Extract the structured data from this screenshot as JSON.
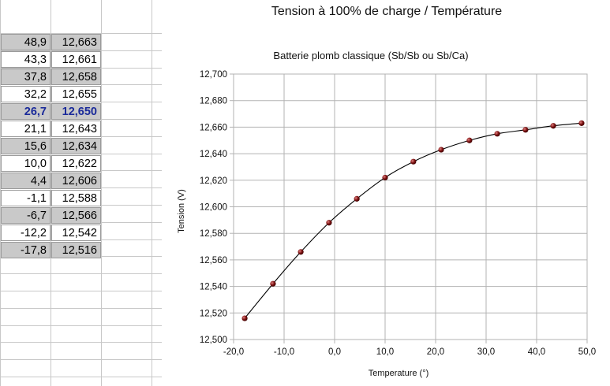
{
  "sheet": {
    "rows": [
      {
        "temp": "48,9",
        "volt": "12,663",
        "shaded": true,
        "highlight": false
      },
      {
        "temp": "43,3",
        "volt": "12,661",
        "shaded": false,
        "highlight": false
      },
      {
        "temp": "37,8",
        "volt": "12,658",
        "shaded": true,
        "highlight": false
      },
      {
        "temp": "32,2",
        "volt": "12,655",
        "shaded": false,
        "highlight": false
      },
      {
        "temp": "26,7",
        "volt": "12,650",
        "shaded": true,
        "highlight": true
      },
      {
        "temp": "21,1",
        "volt": "12,643",
        "shaded": false,
        "highlight": false
      },
      {
        "temp": "15,6",
        "volt": "12,634",
        "shaded": true,
        "highlight": false
      },
      {
        "temp": "10,0",
        "volt": "12,622",
        "shaded": false,
        "highlight": false
      },
      {
        "temp": "4,4",
        "volt": "12,606",
        "shaded": true,
        "highlight": false
      },
      {
        "temp": "-1,1",
        "volt": "12,588",
        "shaded": false,
        "highlight": false
      },
      {
        "temp": "-6,7",
        "volt": "12,566",
        "shaded": true,
        "highlight": false
      },
      {
        "temp": "-12,2",
        "volt": "12,542",
        "shaded": false,
        "highlight": false
      },
      {
        "temp": "-17,8",
        "volt": "12,516",
        "shaded": true,
        "highlight": false
      }
    ]
  },
  "chart_data": {
    "type": "scatter",
    "title": "Tension à 100% de charge / Température",
    "subtitle": "Batterie plomb classique (Sb/Sb ou Sb/Ca)",
    "xlabel": "Temperature (°)",
    "ylabel": "Tension (V)",
    "xlim": [
      -20,
      50
    ],
    "ylim": [
      12.5,
      12.7
    ],
    "x_ticks": [
      "-20,0",
      "-10,0",
      "0,0",
      "10,0",
      "20,0",
      "30,0",
      "40,0",
      "50,0"
    ],
    "y_ticks": [
      "12,500",
      "12,520",
      "12,540",
      "12,560",
      "12,580",
      "12,600",
      "12,620",
      "12,640",
      "12,660",
      "12,680",
      "12,700"
    ],
    "grid": true,
    "series": [
      {
        "x": [
          48.9,
          43.3,
          37.8,
          32.2,
          26.7,
          21.1,
          15.6,
          10.0,
          4.4,
          -1.1,
          -6.7,
          -12.2,
          -17.8
        ],
        "y": [
          12.663,
          12.661,
          12.658,
          12.655,
          12.65,
          12.643,
          12.634,
          12.622,
          12.606,
          12.588,
          12.566,
          12.542,
          12.516
        ]
      }
    ],
    "marker_color": "#7a1010",
    "line_color": "#000000"
  }
}
